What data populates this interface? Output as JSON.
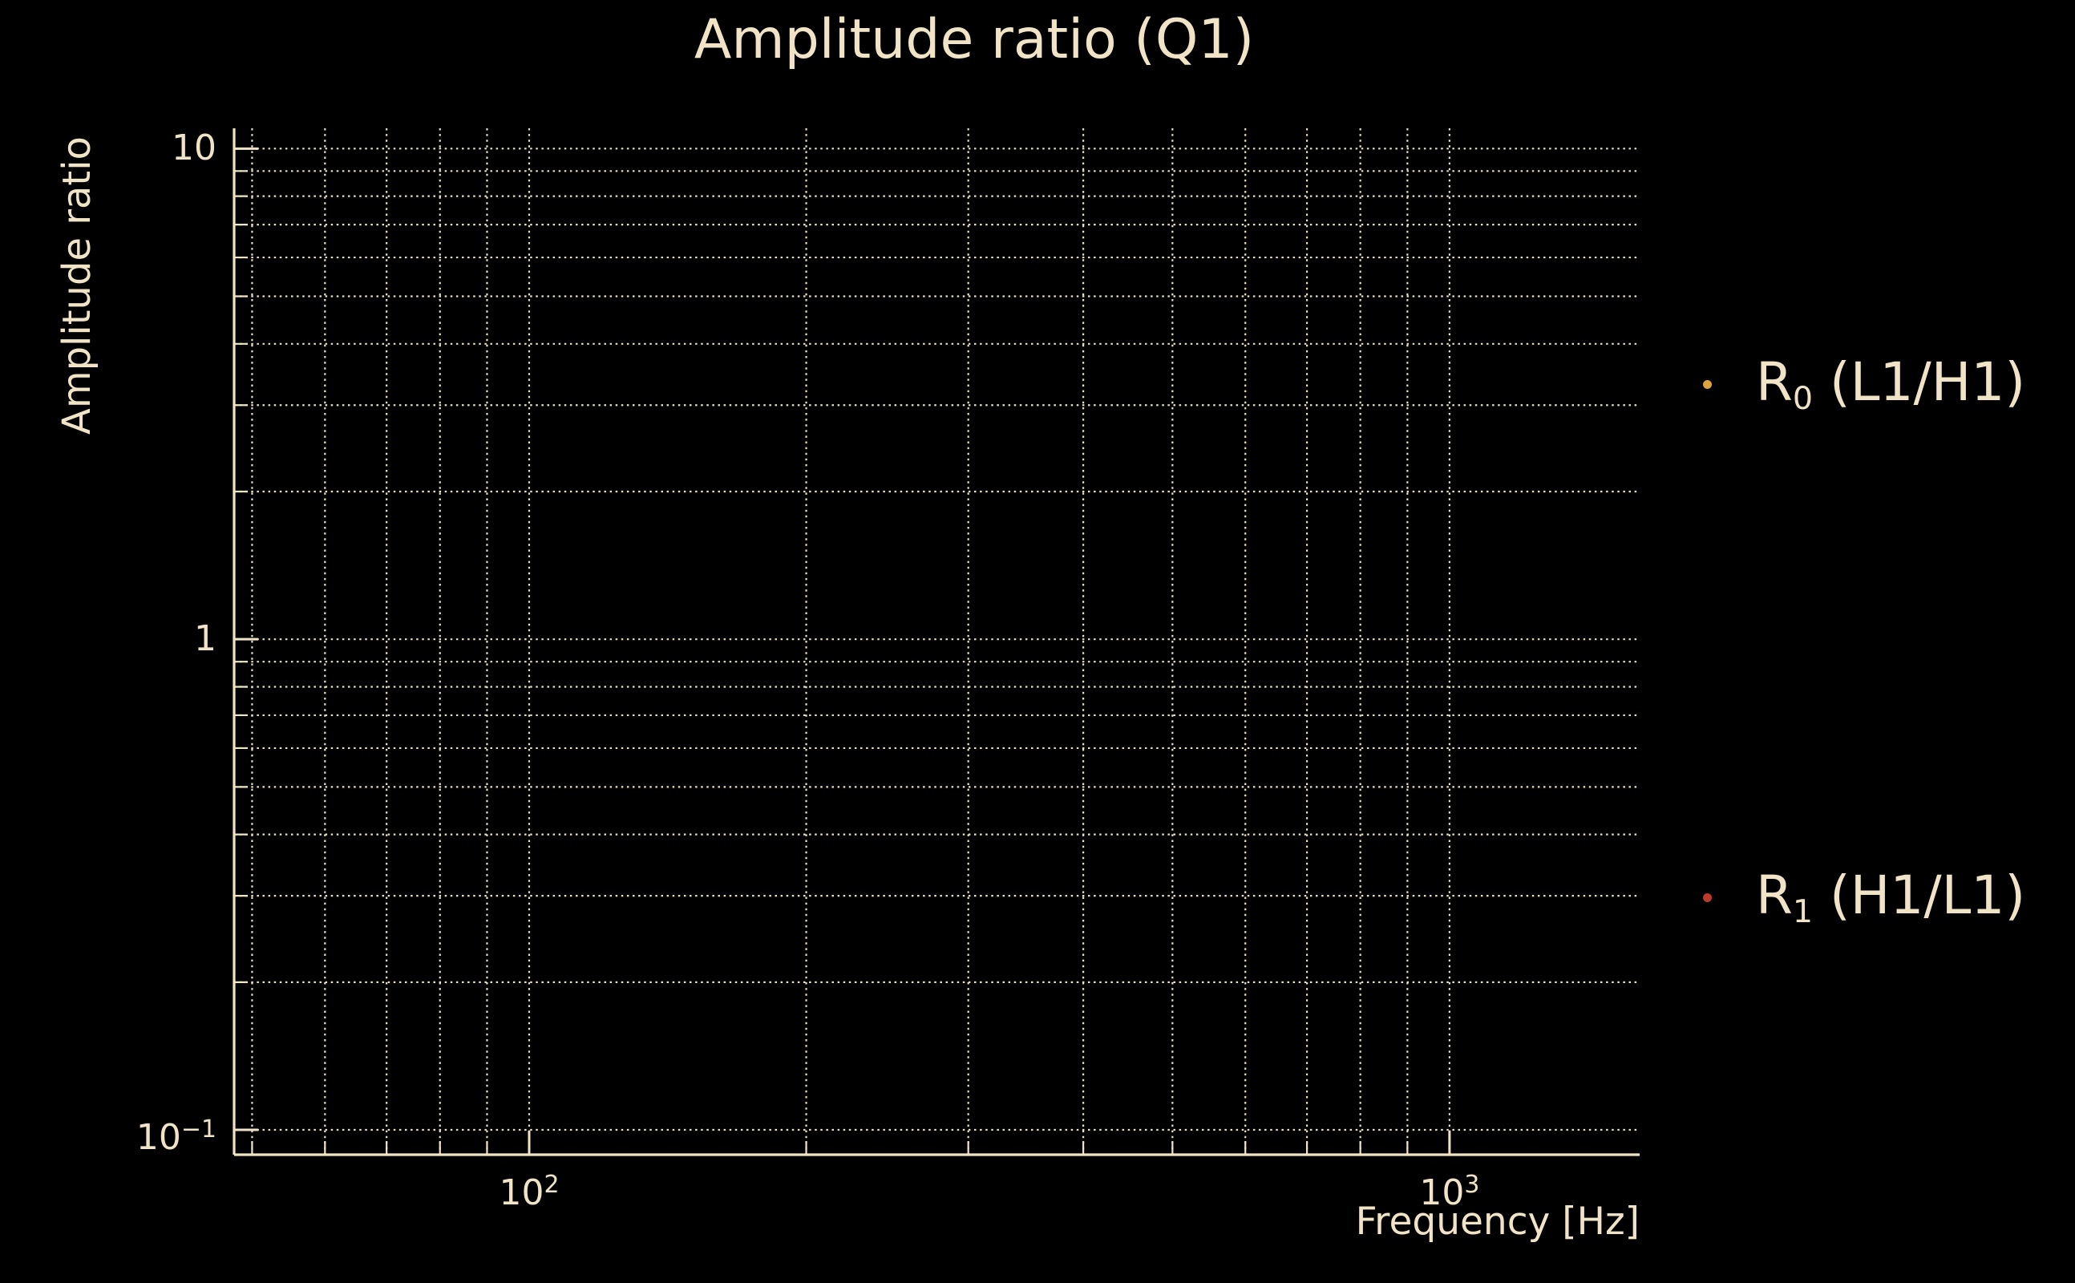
{
  "colors": {
    "background": "#000000",
    "foreground": "#f1e4c6",
    "grid": "#ece0c2",
    "series_r0_marker": "#e0a23c",
    "series_r1_marker": "#be3a2b"
  },
  "chart_data": {
    "type": "scatter",
    "title": "Amplitude ratio (Q1)",
    "xlabel": "Frequency [Hz]",
    "ylabel": "Amplitude ratio",
    "x_scale": "log",
    "y_scale": "log",
    "xlim": [
      47.8,
      1609
    ],
    "ylim": [
      0.089,
      11.0
    ],
    "grid": "dotted major and minor gridlines on both axes",
    "spines": [
      "left",
      "bottom"
    ],
    "legend_position": "outside right",
    "x_ticks": [
      {
        "value": 100,
        "base": "10",
        "exp": "2"
      },
      {
        "value": 1000,
        "base": "10",
        "exp": "3"
      }
    ],
    "x_minor_gridlines": [
      50,
      60,
      70,
      80,
      90,
      200,
      300,
      400,
      500,
      600,
      700,
      800,
      900
    ],
    "y_ticks": [
      {
        "value": 10,
        "base": "10",
        "exp": ""
      },
      {
        "value": 1,
        "base": "1",
        "exp": ""
      },
      {
        "value": 0.1,
        "base": "10",
        "exp": "−1"
      }
    ],
    "y_minor_gridlines": [
      9,
      8,
      7,
      6,
      5,
      4,
      3,
      2,
      0.9,
      0.8,
      0.7,
      0.6,
      0.5,
      0.4,
      0.3,
      0.2
    ],
    "series": [
      {
        "name": "R0 (L1/H1)",
        "label_prefix": "R",
        "label_sub": "0",
        "label_suffix": " (L1/H1)",
        "marker_color": "#e0a23c",
        "points": []
      },
      {
        "name": "R1 (H1/L1)",
        "label_prefix": "R",
        "label_sub": "1",
        "label_suffix": " (H1/L1)",
        "marker_color": "#be3a2b",
        "points": []
      }
    ]
  }
}
